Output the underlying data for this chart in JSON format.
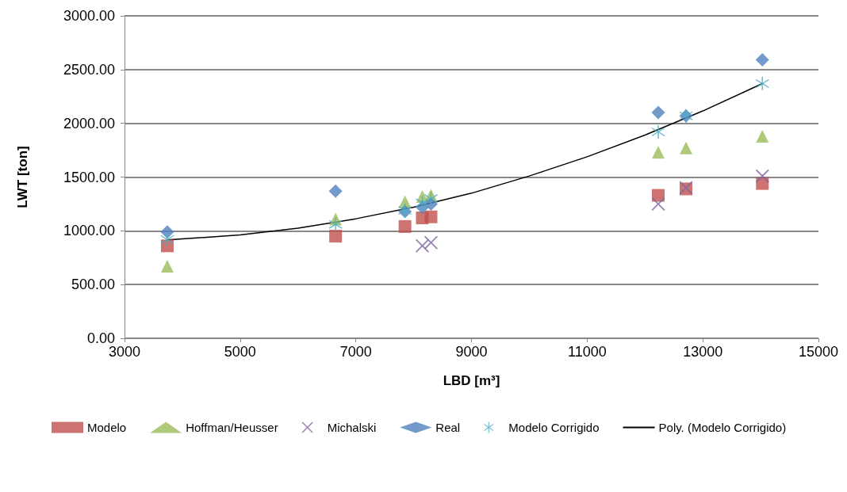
{
  "chart_data": {
    "type": "scatter",
    "xlabel": "LBD [m³]",
    "ylabel": "LWT [ton]",
    "x": [
      3740,
      6650,
      7850,
      8150,
      8300,
      12230,
      12710,
      14030
    ],
    "xlim": [
      3000,
      15000
    ],
    "xticks": [
      3000,
      5000,
      7000,
      9000,
      11000,
      13000,
      15000
    ],
    "ylim": [
      0,
      3000
    ],
    "yticks": [
      {
        "value": 0,
        "label": "0.00"
      },
      {
        "value": 500,
        "label": "500.00"
      },
      {
        "value": 1000,
        "label": "1000.00"
      },
      {
        "value": 1500,
        "label": "1500.00"
      },
      {
        "value": 2000,
        "label": "2000.00"
      },
      {
        "value": 2500,
        "label": "2500.00"
      },
      {
        "value": 3000,
        "label": "3000.00"
      }
    ],
    "grid": "y",
    "legend": "bottom",
    "series": [
      {
        "name": "Modelo",
        "color": "#c0504d",
        "marker": "square",
        "values": [
          860,
          950,
          1040,
          1120,
          1130,
          1330,
          1390,
          1440
        ]
      },
      {
        "name": "Hoffman/Heusser",
        "color": "#9bbb59",
        "marker": "triangle",
        "values": [
          670,
          1110,
          1270,
          1320,
          1330,
          1730,
          1770,
          1880
        ]
      },
      {
        "name": "Michalski",
        "color": "#8064a2",
        "marker": "cross",
        "values": [
          null,
          null,
          null,
          860,
          890,
          1250,
          1400,
          1510
        ]
      },
      {
        "name": "Real",
        "color": "#4f81bd",
        "marker": "diamond",
        "values": [
          990,
          1370,
          1180,
          1220,
          1250,
          2100,
          2070,
          2590
        ]
      },
      {
        "name": "Modelo Corrigido",
        "color": "#4bacc6",
        "marker": "star",
        "values": [
          920,
          1060,
          1190,
          1260,
          1300,
          1920,
          2070,
          2370
        ]
      },
      {
        "name": "Poly. (Modelo Corrigido)",
        "color": "#000000",
        "type": "line",
        "marker": "none",
        "x": [
          3740,
          5000,
          6000,
          7000,
          8000,
          9000,
          10000,
          11000,
          12000,
          13000,
          14030
        ],
        "values": [
          915,
          962,
          1025,
          1112,
          1220,
          1350,
          1510,
          1689,
          1891,
          2115,
          2370
        ]
      }
    ]
  }
}
